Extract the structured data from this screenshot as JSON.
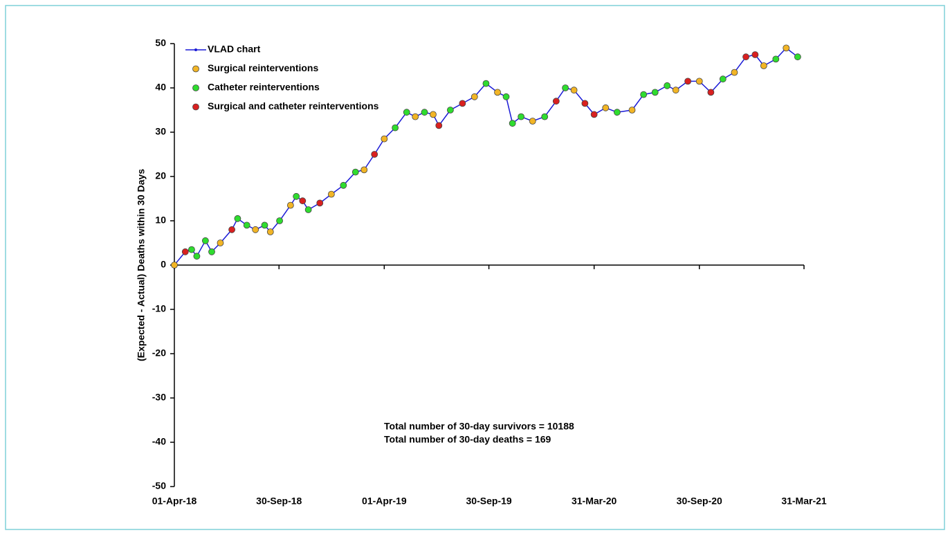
{
  "chart_data": {
    "type": "line",
    "ylabel": "(Expected - Actual) Deaths within 30 Days",
    "xlim": [
      "2018-04-01",
      "2021-03-31"
    ],
    "xticks": [
      {
        "value": "2018-04-01",
        "label": "01-Apr-18"
      },
      {
        "value": "2018-09-30",
        "label": "30-Sep-18"
      },
      {
        "value": "2019-04-01",
        "label": "01-Apr-19"
      },
      {
        "value": "2019-09-30",
        "label": "30-Sep-19"
      },
      {
        "value": "2020-03-31",
        "label": "31-Mar-20"
      },
      {
        "value": "2020-09-30",
        "label": "30-Sep-20"
      },
      {
        "value": "2021-03-31",
        "label": "31-Mar-21"
      }
    ],
    "ylim": [
      -50,
      50
    ],
    "yticks": [
      -50,
      -40,
      -30,
      -20,
      -10,
      0,
      10,
      20,
      30,
      40,
      50
    ],
    "annotations": [
      "Total number of 30-day survivors = 10188",
      "Total number of 30-day deaths = 169"
    ],
    "series": [
      {
        "name": "VLAD chart",
        "type": "line",
        "color": "#1a1ad6",
        "x": [
          "2018-04-01",
          "2018-04-20",
          "2018-05-01",
          "2018-05-10",
          "2018-05-25",
          "2018-06-05",
          "2018-06-20",
          "2018-07-10",
          "2018-07-20",
          "2018-08-05",
          "2018-08-20",
          "2018-09-05",
          "2018-09-15",
          "2018-10-01",
          "2018-10-20",
          "2018-10-30",
          "2018-11-10",
          "2018-11-20",
          "2018-12-10",
          "2018-12-30",
          "2019-01-20",
          "2019-02-10",
          "2019-02-25",
          "2019-03-15",
          "2019-04-01",
          "2019-04-20",
          "2019-05-10",
          "2019-05-25",
          "2019-06-10",
          "2019-06-25",
          "2019-07-05",
          "2019-07-25",
          "2019-08-15",
          "2019-09-05",
          "2019-09-25",
          "2019-10-15",
          "2019-10-30",
          "2019-11-10",
          "2019-11-25",
          "2019-12-15",
          "2020-01-05",
          "2020-01-25",
          "2020-02-10",
          "2020-02-25",
          "2020-03-15",
          "2020-03-31",
          "2020-04-20",
          "2020-05-10",
          "2020-06-05",
          "2020-06-25",
          "2020-07-15",
          "2020-08-05",
          "2020-08-20",
          "2020-09-10",
          "2020-09-30",
          "2020-10-20",
          "2020-11-10",
          "2020-11-30",
          "2020-12-20",
          "2021-01-05",
          "2021-01-20",
          "2021-02-10",
          "2021-02-28",
          "2021-03-20"
        ],
        "values": [
          0,
          3,
          3.5,
          2,
          5.5,
          3,
          5,
          8,
          10.5,
          9,
          8,
          9,
          7.5,
          10,
          13.5,
          15.5,
          14.5,
          12.5,
          14,
          16,
          18,
          21,
          21.5,
          25,
          28.5,
          31,
          34.5,
          33.5,
          34.5,
          34,
          31.5,
          35,
          36.5,
          38,
          41,
          39,
          38,
          32,
          33.5,
          32.5,
          33.5,
          37,
          40,
          39.5,
          36.5,
          34,
          35.5,
          34.5,
          35,
          38.5,
          39,
          40.5,
          39.5,
          41.5,
          41.5,
          39,
          42,
          43.5,
          47,
          47.5,
          45,
          46.5,
          49,
          47
        ]
      },
      {
        "name": "Surgical reinterventions",
        "type": "scatter",
        "color": "#f2b526",
        "x": [
          "2018-04-01",
          "2018-06-20",
          "2018-08-20",
          "2018-09-15",
          "2018-10-20",
          "2018-12-30",
          "2019-02-25",
          "2019-04-01",
          "2019-05-25",
          "2019-06-25",
          "2019-09-05",
          "2019-10-15",
          "2019-12-15",
          "2020-02-25",
          "2020-04-20",
          "2020-06-05",
          "2020-08-20",
          "2020-09-30",
          "2020-11-30",
          "2021-01-20",
          "2021-02-28"
        ],
        "values": [
          0,
          5,
          8,
          7.5,
          13.5,
          16,
          21.5,
          28.5,
          33.5,
          34,
          38,
          39,
          32.5,
          39.5,
          35.5,
          35,
          39.5,
          41.5,
          43.5,
          45,
          49
        ]
      },
      {
        "name": "Catheter reinterventions",
        "type": "scatter",
        "color": "#2fdc2f",
        "x": [
          "2018-05-01",
          "2018-05-10",
          "2018-05-25",
          "2018-06-05",
          "2018-07-20",
          "2018-08-05",
          "2018-09-05",
          "2018-10-01",
          "2018-10-30",
          "2018-11-20",
          "2019-01-20",
          "2019-02-10",
          "2019-04-20",
          "2019-05-10",
          "2019-06-10",
          "2019-07-25",
          "2019-09-25",
          "2019-10-30",
          "2019-11-10",
          "2019-11-25",
          "2020-01-05",
          "2020-02-10",
          "2020-05-10",
          "2020-06-25",
          "2020-07-15",
          "2020-08-05",
          "2020-11-10",
          "2021-02-10",
          "2021-03-20"
        ],
        "values": [
          3.5,
          2,
          5.5,
          3,
          10.5,
          9,
          9,
          10,
          15.5,
          12.5,
          18,
          21,
          31,
          34.5,
          34.5,
          35,
          41,
          38,
          32,
          33.5,
          33.5,
          40,
          34.5,
          38.5,
          39,
          40.5,
          42,
          46.5,
          47
        ]
      },
      {
        "name": "Surgical and catheter reinterventions",
        "type": "scatter",
        "color": "#d92020",
        "x": [
          "2018-04-20",
          "2018-07-10",
          "2018-11-10",
          "2018-12-10",
          "2019-03-15",
          "2019-07-05",
          "2019-08-15",
          "2020-01-25",
          "2020-03-15",
          "2020-03-31",
          "2020-09-10",
          "2020-10-20",
          "2020-12-20",
          "2021-01-05"
        ],
        "values": [
          3,
          8,
          14.5,
          14,
          25,
          31.5,
          36.5,
          37,
          36.5,
          34,
          41.5,
          39,
          47,
          47.5
        ]
      }
    ]
  }
}
